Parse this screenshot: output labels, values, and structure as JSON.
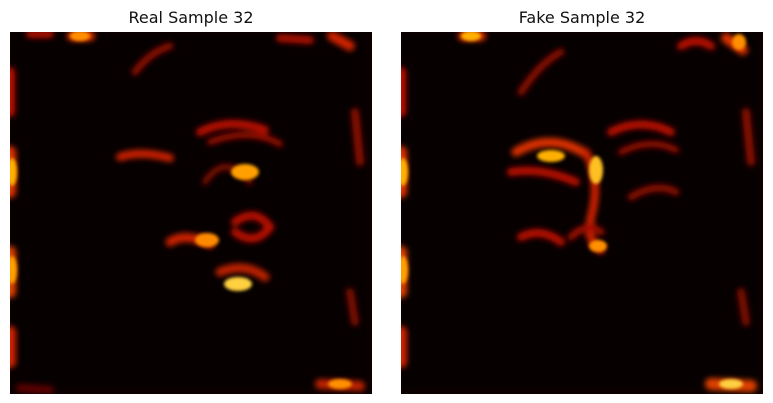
{
  "panels": [
    {
      "title": "Real Sample 32",
      "colormap": "hot"
    },
    {
      "title": "Fake Sample 32",
      "colormap": "hot"
    }
  ]
}
